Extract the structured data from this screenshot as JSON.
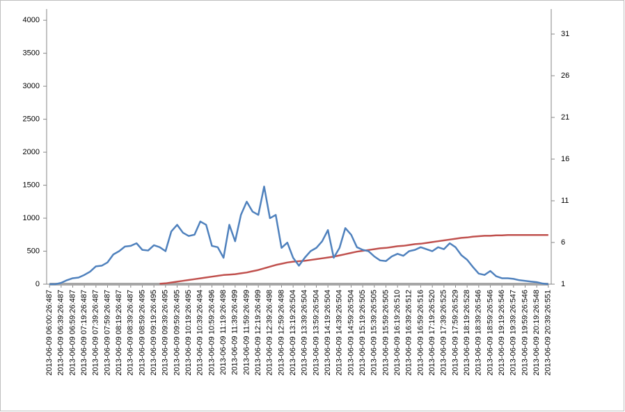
{
  "chart_data": {
    "type": "line",
    "categories": [
      "2013-06-09 06:00:26:487",
      null,
      "2013-06-09 06:39:26:487",
      null,
      "2013-06-09 06:59:26:487",
      null,
      "2013-06-09 07:19:26:487",
      null,
      "2013-06-09 07:39:26:487",
      null,
      "2013-06-09 07:59:26:487",
      null,
      "2013-06-09 08:19:26:487",
      null,
      "2013-06-09 08:39:26:487",
      null,
      "2013-06-09 08:59:26:495",
      null,
      "2013-06-09 09:19:26:495",
      null,
      "2013-06-09 09:39:26:495",
      null,
      "2013-06-09 09:59:26:495",
      null,
      "2013-06-09 10:19:26:495",
      null,
      "2013-06-09 10:39:26:494",
      null,
      "2013-06-09 10:59:26:496",
      null,
      "2013-06-09 11:19:26:498",
      null,
      "2013-06-09 11:39:26:499",
      null,
      "2013-06-09 11:59:26:499",
      null,
      "2013-06-09 12:19:26:499",
      null,
      "2013-06-09 12:39:26:498",
      null,
      "2013-06-09 12:59:26:498",
      null,
      "2013-06-09 13:19:26:504",
      null,
      "2013-06-09 13:39:26:504",
      null,
      "2013-06-09 13:59:26:504",
      null,
      "2013-06-09 14:19:26:504",
      null,
      "2013-06-09 14:39:26:504",
      null,
      "2013-06-09 14:59:26:504",
      null,
      "2013-06-09 15:19:26:505",
      null,
      "2013-06-09 15:39:26:505",
      null,
      "2013-06-09 15:59:26:505",
      null,
      "2013-06-09 16:19:26:510",
      null,
      "2013-06-09 16:39:26:512",
      null,
      "2013-06-09 16:59:26:516",
      null,
      "2013-06-09 17:19:26:520",
      null,
      "2013-06-09 17:39:26:525",
      null,
      "2013-06-09 17:59:26:529",
      null,
      "2013-06-09 18:19:26:528",
      null,
      "2013-06-09 18:39:26:546",
      null,
      "2013-06-09 18:59:26:546",
      null,
      "2013-06-09 19:19:26:546",
      null,
      "2013-06-09 19:39:26:547",
      null,
      "2013-06-09 19:59:26:546",
      null,
      "2013-06-09 20:19:26:548",
      null,
      "2013-06-09 20:39:26:551"
    ],
    "series": [
      {
        "color": "#4f81bd",
        "values": [
          0,
          0,
          20,
          60,
          90,
          100,
          140,
          190,
          270,
          280,
          330,
          450,
          500,
          570,
          580,
          620,
          520,
          510,
          590,
          560,
          500,
          800,
          900,
          780,
          730,
          750,
          950,
          900,
          580,
          560,
          400,
          900,
          650,
          1050,
          1250,
          1100,
          1050,
          1480,
          1000,
          1050,
          550,
          630,
          400,
          280,
          400,
          500,
          550,
          650,
          820,
          400,
          550,
          850,
          750,
          560,
          520,
          500,
          420,
          360,
          350,
          420,
          460,
          430,
          500,
          520,
          560,
          530,
          500,
          560,
          530,
          620,
          560,
          440,
          370,
          260,
          160,
          140,
          200,
          120,
          90,
          90,
          80,
          60,
          50,
          40,
          30,
          10,
          0
        ]
      },
      {
        "color": "#a6a6a6",
        "values": [
          0,
          0,
          0,
          0,
          0,
          0,
          0,
          0,
          0,
          0,
          0,
          0,
          0,
          0,
          0,
          0,
          0,
          0,
          0,
          0,
          0,
          0,
          0,
          0,
          0,
          0,
          0,
          0,
          0,
          0,
          0,
          0,
          0,
          0,
          0,
          0,
          0,
          0,
          0,
          0,
          0,
          0,
          0,
          0,
          0,
          0,
          0,
          0,
          0,
          0,
          0,
          0,
          0,
          0,
          0,
          0,
          0,
          0,
          0,
          0,
          0,
          0,
          0,
          0,
          0,
          0,
          0,
          0,
          0,
          0,
          0,
          0,
          0,
          0,
          0,
          0,
          0,
          0,
          0,
          0,
          0,
          0,
          0,
          0,
          0,
          0,
          0
        ]
      },
      {
        "color": "#c0504d",
        "axis": "y2",
        "values": [
          null,
          null,
          null,
          null,
          null,
          null,
          null,
          null,
          null,
          null,
          null,
          null,
          null,
          null,
          null,
          null,
          null,
          null,
          null,
          1.05,
          1.1,
          1.2,
          1.3,
          1.4,
          1.5,
          1.6,
          1.7,
          1.8,
          1.9,
          2.0,
          2.1,
          2.15,
          2.2,
          2.3,
          2.4,
          2.55,
          2.7,
          2.9,
          3.1,
          3.3,
          3.45,
          3.6,
          3.7,
          3.75,
          3.8,
          3.9,
          4.0,
          4.1,
          4.2,
          4.3,
          4.45,
          4.6,
          4.75,
          4.9,
          5.0,
          5.1,
          5.2,
          5.3,
          5.35,
          5.45,
          5.55,
          5.6,
          5.7,
          5.8,
          5.85,
          5.95,
          6.05,
          6.15,
          6.25,
          6.35,
          6.45,
          6.55,
          6.6,
          6.7,
          6.75,
          6.8,
          6.8,
          6.85,
          6.85,
          6.9,
          6.9,
          6.9,
          6.9,
          6.9,
          6.9,
          6.9,
          6.9
        ]
      }
    ],
    "ylim": [
      0,
      4170
    ],
    "yticks": [
      0,
      500,
      1000,
      1500,
      2000,
      2500,
      3000,
      3500,
      4000
    ],
    "y2lim": [
      1,
      34
    ],
    "y2ticks": [
      1,
      6,
      11,
      16,
      21,
      26,
      31
    ],
    "grid": false
  }
}
